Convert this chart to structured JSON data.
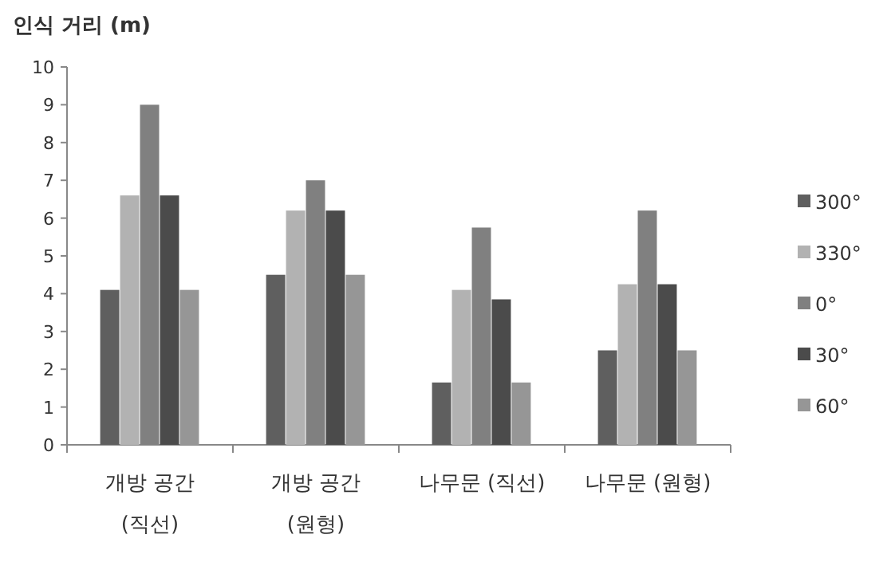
{
  "chart_data": {
    "type": "bar",
    "title": "인식 거리 (m)",
    "categories": [
      "개방 공간\n(직선)",
      "개방 공간\n(원형)",
      "나무문 (직선)",
      "나무문 (원형)"
    ],
    "series": [
      {
        "name": "300°",
        "color": "#5f5f5f",
        "values": [
          4.1,
          4.5,
          1.65,
          2.5
        ]
      },
      {
        "name": "330°",
        "color": "#b2b2b2",
        "values": [
          6.6,
          6.2,
          4.1,
          4.25
        ]
      },
      {
        "name": "0°",
        "color": "#808080",
        "values": [
          9.0,
          7.0,
          5.75,
          6.2
        ]
      },
      {
        "name": "30°",
        "color": "#4b4b4b",
        "values": [
          6.6,
          6.2,
          3.85,
          4.25
        ]
      },
      {
        "name": "60°",
        "color": "#969696",
        "values": [
          4.1,
          4.5,
          1.65,
          2.5
        ]
      }
    ],
    "ylim": [
      0,
      10
    ],
    "yticks": [
      0,
      1,
      2,
      3,
      4,
      5,
      6,
      7,
      8,
      9,
      10
    ],
    "legend": "right"
  }
}
